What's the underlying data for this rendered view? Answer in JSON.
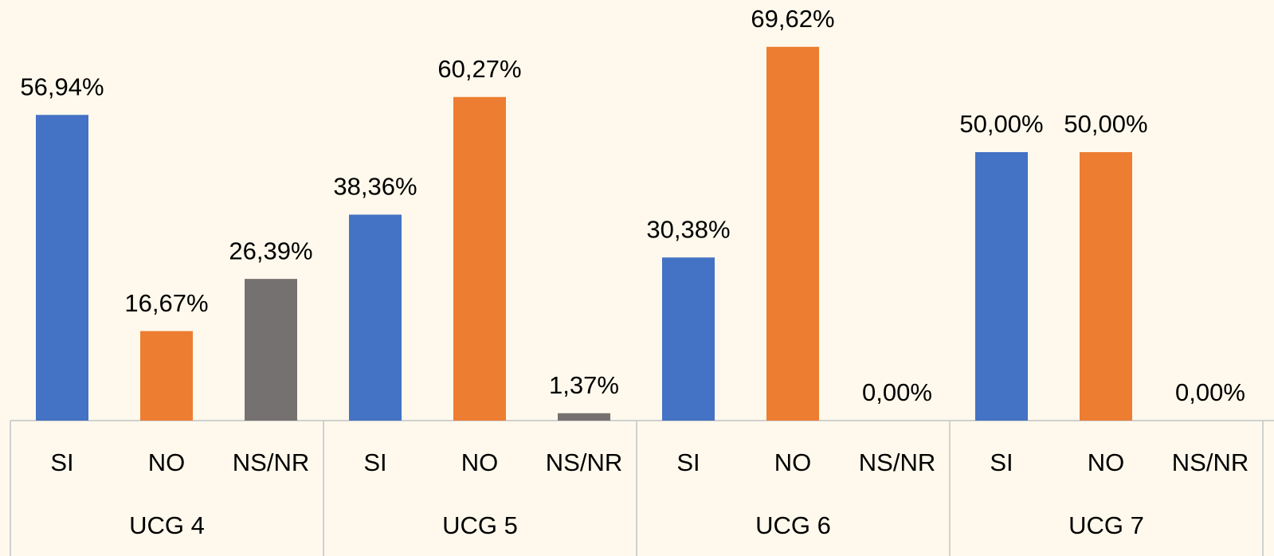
{
  "chart_data": {
    "type": "bar",
    "categories": [
      "UCG 4",
      "UCG 5",
      "UCG 6",
      "UCG 7"
    ],
    "series": [
      {
        "name": "SI",
        "color": "#4472c4",
        "values": [
          56.94,
          38.36,
          30.38,
          50.0
        ],
        "value_labels": [
          "56,94%",
          "38,36%",
          "30,38%",
          "50,00%"
        ]
      },
      {
        "name": "NO",
        "color": "#ed7d31",
        "values": [
          16.67,
          60.27,
          69.62,
          50.0
        ],
        "value_labels": [
          "16,67%",
          "60,27%",
          "69,62%",
          "50,00%"
        ]
      },
      {
        "name": "NS/NR",
        "color": "#767171",
        "values": [
          26.39,
          1.37,
          0.0,
          0.0
        ],
        "value_labels": [
          "26,39%",
          "1,37%",
          "0,00%",
          "0,00%"
        ]
      }
    ]
  }
}
